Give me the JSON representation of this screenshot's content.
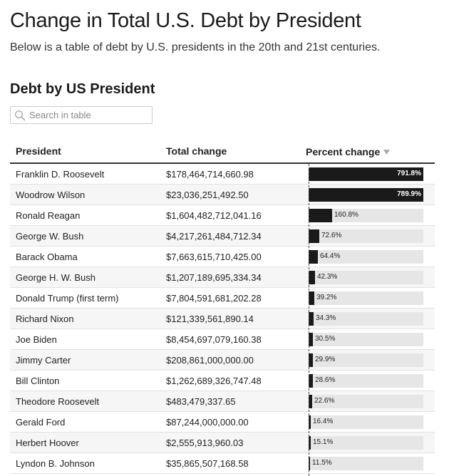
{
  "header": {
    "title": "Change in Total U.S. Debt by President",
    "subtitle": "Below is a table of debt by U.S. presidents in the 20th and 21st centuries."
  },
  "table": {
    "title": "Debt by US President",
    "search": {
      "placeholder": "Search in table",
      "value": ""
    },
    "columns": {
      "president": "President",
      "total": "Total change",
      "percent": "Percent change"
    },
    "sort": {
      "column": "percent",
      "direction": "descending"
    },
    "bar_max_percent": 791.8,
    "colors": {
      "bar": "#1a1a1a",
      "track": "#e6e6e6",
      "inside_label": "#ffffff"
    },
    "rows": [
      {
        "president": "Franklin D. Roosevelt",
        "total": "$178,464,714,660.98",
        "percent": 791.8,
        "percent_label": "791.8%"
      },
      {
        "president": "Woodrow Wilson",
        "total": "$23,036,251,492.50",
        "percent": 789.9,
        "percent_label": "789.9%"
      },
      {
        "president": "Ronald Reagan",
        "total": "$1,604,482,712,041.16",
        "percent": 160.8,
        "percent_label": "160.8%"
      },
      {
        "president": "George W. Bush",
        "total": "$4,217,261,484,712.34",
        "percent": 72.6,
        "percent_label": "72.6%"
      },
      {
        "president": "Barack Obama",
        "total": "$7,663,615,710,425.00",
        "percent": 64.4,
        "percent_label": "64.4%"
      },
      {
        "president": "George H. W. Bush",
        "total": "$1,207,189,695,334.34",
        "percent": 42.3,
        "percent_label": "42.3%"
      },
      {
        "president": "Donald Trump (first term)",
        "total": "$7,804,591,681,202.28",
        "percent": 39.2,
        "percent_label": "39.2%"
      },
      {
        "president": "Richard Nixon",
        "total": "$121,339,561,890.14",
        "percent": 34.3,
        "percent_label": "34.3%"
      },
      {
        "president": "Joe Biden",
        "total": "$8,454,697,079,160.38",
        "percent": 30.5,
        "percent_label": "30.5%"
      },
      {
        "president": "Jimmy Carter",
        "total": "$208,861,000,000.00",
        "percent": 29.9,
        "percent_label": "29.9%"
      },
      {
        "president": "Bill Clinton",
        "total": "$1,262,689,326,747.48",
        "percent": 28.6,
        "percent_label": "28.6%"
      },
      {
        "president": "Theodore Roosevelt",
        "total": "$483,479,337.65",
        "percent": 22.6,
        "percent_label": "22.6%"
      },
      {
        "president": "Gerald Ford",
        "total": "$87,244,000,000.00",
        "percent": 16.4,
        "percent_label": "16.4%"
      },
      {
        "president": "Herbert Hoover",
        "total": "$2,555,913,960.03",
        "percent": 15.1,
        "percent_label": "15.1%"
      },
      {
        "president": "Lyndon B. Johnson",
        "total": "$35,865,507,168.58",
        "percent": 11.5,
        "percent_label": "11.5%"
      }
    ]
  }
}
